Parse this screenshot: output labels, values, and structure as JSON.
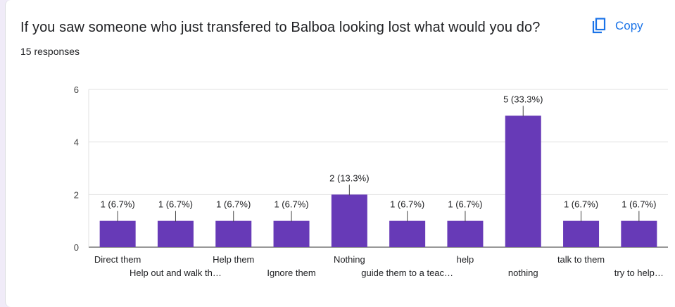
{
  "question": {
    "title": "If you saw someone who just transfered to Balboa looking lost what would you do?",
    "responses": "15 responses"
  },
  "copy_button": {
    "label": "Copy",
    "icon": "copy-icon"
  },
  "colors": {
    "bar": "#673ab7",
    "accent": "#1a73e8"
  },
  "chart_data": {
    "type": "bar",
    "categories": [
      "Direct them",
      "Help out and walk th…",
      "Help them",
      "Ignore them",
      "Nothing",
      "guide them to a teac…",
      "help",
      "nothing",
      "talk to them",
      "try to help…"
    ],
    "values": [
      1,
      1,
      1,
      1,
      2,
      1,
      1,
      5,
      1,
      1
    ],
    "data_labels": [
      "1 (6.7%)",
      "1 (6.7%)",
      "1 (6.7%)",
      "1 (6.7%)",
      "2 (13.3%)",
      "1 (6.7%)",
      "1 (6.7%)",
      "5 (33.3%)",
      "1 (6.7%)",
      "1 (6.7%)"
    ],
    "ylim": [
      0,
      6
    ],
    "yticks": [
      "0",
      "2",
      "4",
      "6"
    ],
    "grid": true,
    "title": "",
    "xlabel": "",
    "ylabel": ""
  }
}
